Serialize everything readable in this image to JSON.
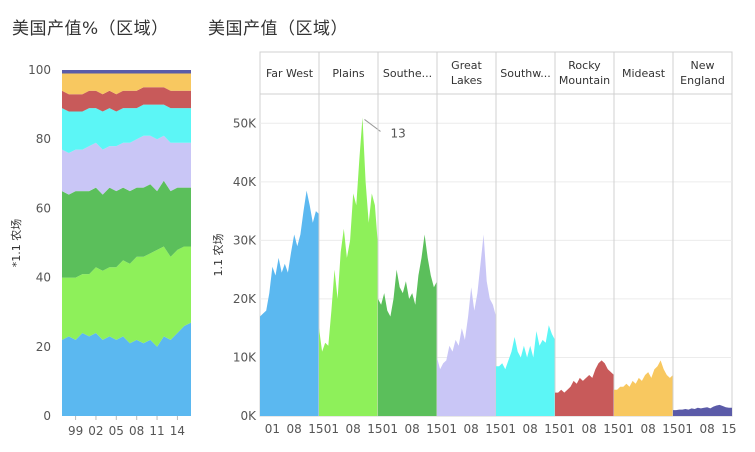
{
  "chart_data": [
    {
      "type": "area",
      "stacking": "percent",
      "title": "美国产值%（区域）",
      "ylabel": "*1.1 农场",
      "ylim": [
        0,
        100
      ],
      "yticks": [
        "0",
        "20",
        "40",
        "60",
        "80",
        "100"
      ],
      "xticks": [
        "99",
        "02",
        "05",
        "08",
        "11",
        "14"
      ],
      "x": [
        1997,
        1998,
        1999,
        2000,
        2001,
        2002,
        2003,
        2004,
        2005,
        2006,
        2007,
        2008,
        2009,
        2010,
        2011,
        2012,
        2013,
        2014,
        2015,
        2016
      ],
      "series": [
        {
          "name": "Far West",
          "color": "#5bb8f0",
          "values": [
            22,
            23,
            22,
            24,
            23,
            24,
            22,
            23,
            22,
            23,
            21,
            22,
            21,
            22,
            20,
            23,
            22,
            24,
            26,
            27
          ]
        },
        {
          "name": "Plains",
          "color": "#8ef05a",
          "values": [
            18,
            17,
            18,
            17,
            18,
            19,
            20,
            20,
            21,
            22,
            23,
            24,
            25,
            25,
            28,
            26,
            24,
            24,
            23,
            22
          ]
        },
        {
          "name": "Southeast",
          "color": "#5bbf5b",
          "values": [
            25,
            24,
            25,
            24,
            24,
            23,
            22,
            23,
            22,
            21,
            21,
            20,
            20,
            20,
            17,
            19,
            19,
            18,
            17,
            17
          ]
        },
        {
          "name": "Great Lakes",
          "color": "#c9c6f6",
          "values": [
            12,
            12,
            12,
            12,
            13,
            13,
            13,
            12,
            13,
            13,
            14,
            14,
            15,
            14,
            15,
            13,
            14,
            13,
            13,
            13
          ]
        },
        {
          "name": "Southwest",
          "color": "#5cf6f6",
          "values": [
            12,
            12,
            11,
            11,
            11,
            10,
            11,
            11,
            10,
            10,
            10,
            9,
            9,
            9,
            10,
            9,
            10,
            10,
            10,
            10
          ]
        },
        {
          "name": "Rocky Mountain",
          "color": "#c85a5a",
          "values": [
            5,
            5,
            5,
            5,
            5,
            5,
            5,
            5,
            5,
            5,
            5,
            5,
            5,
            5,
            5,
            5,
            5,
            5,
            5,
            5
          ]
        },
        {
          "name": "Mideast",
          "color": "#f8c860",
          "values": [
            5,
            6,
            6,
            6,
            5,
            5,
            6,
            5,
            6,
            5,
            5,
            5,
            4,
            4,
            4,
            4,
            5,
            5,
            5,
            5
          ]
        },
        {
          "name": "New England",
          "color": "#5b5ba8",
          "values": [
            1,
            1,
            1,
            1,
            1,
            1,
            1,
            1,
            1,
            1,
            1,
            1,
            1,
            1,
            1,
            1,
            1,
            1,
            1,
            1
          ]
        }
      ]
    },
    {
      "type": "area",
      "small_multiples": true,
      "title": "美国产值（区域）",
      "ylabel": "1.1 农场",
      "ylim": [
        0,
        55000
      ],
      "yticks": [
        "0K",
        "10K",
        "20K",
        "30K",
        "40K",
        "50K"
      ],
      "xticks": [
        "01",
        "08",
        "15"
      ],
      "annotation": {
        "panel": "Plains",
        "label": "13"
      },
      "x": [
        1997,
        1998,
        1999,
        2000,
        2001,
        2002,
        2003,
        2004,
        2005,
        2006,
        2007,
        2008,
        2009,
        2010,
        2011,
        2012,
        2013,
        2014,
        2015,
        2016
      ],
      "panels": [
        {
          "label": "Far West",
          "color": "#5bb8f0",
          "values": [
            17000,
            17500,
            18000,
            21000,
            25500,
            24000,
            27000,
            24500,
            26000,
            24500,
            28000,
            31000,
            29000,
            31000,
            35000,
            38500,
            36000,
            33000,
            35000,
            34500
          ]
        },
        {
          "label": "Plains",
          "color": "#8ef05a",
          "values": [
            15000,
            11000,
            12500,
            12000,
            18000,
            25000,
            20000,
            28000,
            32000,
            27000,
            30000,
            38000,
            36000,
            44000,
            51000,
            40000,
            33000,
            38000,
            36000,
            29000
          ]
        },
        {
          "label": "Southeast",
          "color": "#5bbf5b",
          "values": [
            20000,
            19000,
            21000,
            18000,
            17000,
            20000,
            25000,
            22000,
            21000,
            23000,
            20000,
            21000,
            19000,
            24000,
            27000,
            31000,
            27000,
            24000,
            22000,
            23000
          ]
        },
        {
          "label": "Great Lakes",
          "color": "#c9c6f6",
          "values": [
            10000,
            8000,
            9000,
            9500,
            12000,
            11000,
            13000,
            12000,
            15000,
            13000,
            17000,
            22000,
            18000,
            21000,
            26000,
            31000,
            23000,
            20000,
            19000,
            17000
          ]
        },
        {
          "label": "Southwest",
          "color": "#5cf6f6",
          "values": [
            8500,
            8500,
            9000,
            8000,
            9500,
            11000,
            13500,
            11000,
            10000,
            12000,
            10000,
            12000,
            10000,
            14500,
            12000,
            13000,
            12500,
            15500,
            14000,
            13000
          ]
        },
        {
          "label": "Rocky Mountain",
          "color": "#c85a5a",
          "values": [
            4000,
            4000,
            4500,
            4000,
            4500,
            5000,
            6000,
            5500,
            6500,
            6000,
            6500,
            7000,
            6500,
            8000,
            9000,
            9500,
            9000,
            8000,
            7500,
            7000
          ]
        },
        {
          "label": "Mideast",
          "color": "#f8c860",
          "values": [
            4500,
            4500,
            5000,
            5000,
            5500,
            5000,
            6000,
            5500,
            6500,
            6000,
            7000,
            7500,
            6500,
            8000,
            8500,
            9500,
            8000,
            7000,
            6500,
            7000
          ]
        },
        {
          "label": "New England",
          "color": "#5b5ba8",
          "values": [
            1000,
            1000,
            1100,
            1100,
            1200,
            1100,
            1300,
            1200,
            1400,
            1300,
            1400,
            1500,
            1300,
            1600,
            1800,
            1900,
            1700,
            1500,
            1400,
            1400
          ]
        }
      ]
    }
  ]
}
